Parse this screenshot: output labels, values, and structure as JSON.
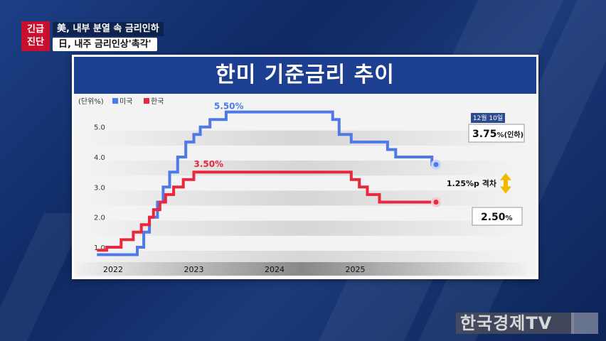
{
  "headline": {
    "badge_line1": "긴급",
    "badge_line2": "진단",
    "line1": "美, 내부 분열 속 금리인하",
    "line2": "日, 내주 금리인상'촉각'"
  },
  "colors": {
    "us": "#4f7ae6",
    "kr": "#e8283c",
    "title_bg": "#1d3f92",
    "arrow": "#f2b800"
  },
  "chart_data": {
    "type": "line",
    "title": "한미 기준금리 추이",
    "unit_label": "(단위%)",
    "legend": [
      "미국",
      "한국"
    ],
    "x_ticks": [
      "2022",
      "2023",
      "2024",
      "2025"
    ],
    "y_ticks": [
      "5.0",
      "4.0",
      "3.0",
      "2.0",
      "1.0"
    ],
    "ylim": [
      0.6,
      5.5
    ],
    "series": [
      {
        "name": "미국",
        "step": true,
        "values": [
          [
            2021.8,
            0.75
          ],
          [
            2022.2,
            0.75
          ],
          [
            2022.3,
            1.0
          ],
          [
            2022.38,
            1.5
          ],
          [
            2022.45,
            2.0
          ],
          [
            2022.55,
            2.5
          ],
          [
            2022.62,
            3.0
          ],
          [
            2022.7,
            3.5
          ],
          [
            2022.8,
            4.0
          ],
          [
            2022.9,
            4.5
          ],
          [
            2023.0,
            4.75
          ],
          [
            2023.08,
            5.0
          ],
          [
            2023.2,
            5.25
          ],
          [
            2023.4,
            5.5
          ],
          [
            2024.65,
            5.5
          ],
          [
            2024.72,
            5.25
          ],
          [
            2024.8,
            4.75
          ],
          [
            2024.95,
            4.5
          ],
          [
            2025.4,
            4.25
          ],
          [
            2025.5,
            4.0
          ],
          [
            2025.95,
            3.75
          ],
          [
            2026.0,
            3.75
          ]
        ]
      },
      {
        "name": "한국",
        "step": true,
        "values": [
          [
            2021.8,
            0.9
          ],
          [
            2021.92,
            1.0
          ],
          [
            2022.1,
            1.25
          ],
          [
            2022.25,
            1.5
          ],
          [
            2022.35,
            1.75
          ],
          [
            2022.45,
            2.0
          ],
          [
            2022.5,
            2.25
          ],
          [
            2022.58,
            2.5
          ],
          [
            2022.65,
            2.75
          ],
          [
            2022.75,
            3.0
          ],
          [
            2022.87,
            3.25
          ],
          [
            2023.0,
            3.5
          ],
          [
            2024.9,
            3.5
          ],
          [
            2024.95,
            3.25
          ],
          [
            2025.05,
            3.0
          ],
          [
            2025.15,
            2.75
          ],
          [
            2025.3,
            2.5
          ],
          [
            2026.0,
            2.5
          ]
        ]
      }
    ],
    "annotations": {
      "us_peak": "5.50%",
      "kr_peak": "3.50%",
      "date_badge": "12월 10일",
      "us_now_value": "3.75",
      "us_now_suffix": "%(인하)",
      "kr_now_value": "2.50",
      "kr_now_suffix": "%",
      "gap": "1.25%p 격차"
    }
  },
  "watermark": "한국경제TV"
}
